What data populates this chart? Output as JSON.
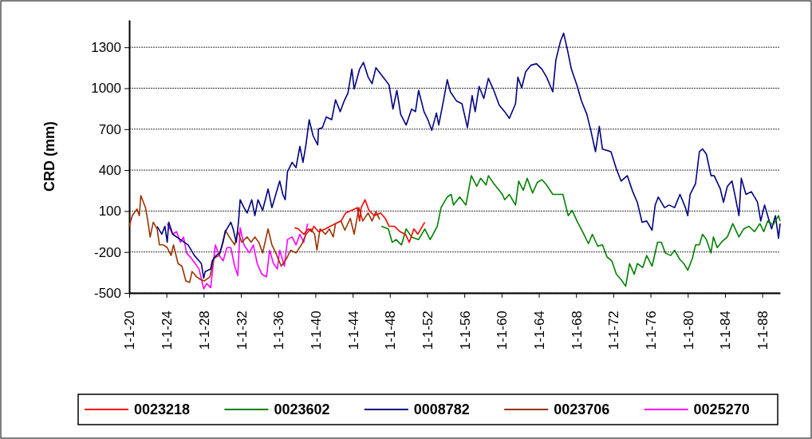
{
  "chart_data": {
    "type": "line",
    "ylabel": "CRD (mm)",
    "xlim": [
      "1920-01-01",
      "1989-12-01"
    ],
    "ylim": [
      -500,
      1500
    ],
    "xticks": [
      {
        "value": "1920-01-01",
        "label": "1-1-20"
      },
      {
        "value": "1924-01-01",
        "label": "1-1-24"
      },
      {
        "value": "1928-01-01",
        "label": "1-1-28"
      },
      {
        "value": "1932-01-01",
        "label": "1-1-32"
      },
      {
        "value": "1936-01-01",
        "label": "1-1-36"
      },
      {
        "value": "1940-01-01",
        "label": "1-1-40"
      },
      {
        "value": "1944-01-01",
        "label": "1-1-44"
      },
      {
        "value": "1948-01-01",
        "label": "1-1-48"
      },
      {
        "value": "1952-01-01",
        "label": "1-1-52"
      },
      {
        "value": "1956-01-01",
        "label": "1-1-56"
      },
      {
        "value": "1960-01-01",
        "label": "1-1-60"
      },
      {
        "value": "1964-01-01",
        "label": "1-1-64"
      },
      {
        "value": "1968-01-01",
        "label": "1-1-68"
      },
      {
        "value": "1972-01-01",
        "label": "1-1-72"
      },
      {
        "value": "1976-01-01",
        "label": "1-1-76"
      },
      {
        "value": "1980-01-01",
        "label": "1-1-80"
      },
      {
        "value": "1984-01-01",
        "label": "1-1-84"
      },
      {
        "value": "1988-01-01",
        "label": "1-1-88"
      }
    ],
    "yticks": [
      -500,
      -200,
      100,
      400,
      700,
      1000,
      1300
    ],
    "grid": "y",
    "legend": "bottom",
    "marker": "none",
    "line_style": "solid",
    "series": [
      {
        "name": "0023218",
        "color": "#ff0000",
        "x": [
          "1937-10",
          "1938-03",
          "1938-10",
          "1939-04",
          "1939-08",
          "1939-11",
          "1940-05",
          "1941-02",
          "1941-08",
          "1942-03",
          "1942-10",
          "1943-04",
          "1943-12",
          "1944-07",
          "1944-10",
          "1944-12",
          "1945-05",
          "1945-10",
          "1946-05",
          "1947-01",
          "1947-07",
          "1947-12",
          "1948-07",
          "1949-02",
          "1949-09",
          "1950-02",
          "1950-08",
          "1951-01",
          "1951-10"
        ],
        "values": [
          -22,
          -31,
          -70,
          -31,
          -51,
          -12,
          -51,
          -31,
          -12,
          8,
          27,
          86,
          105,
          125,
          27,
          125,
          183,
          105,
          66,
          86,
          47,
          -12,
          -12,
          -51,
          -70,
          -129,
          -31,
          -70,
          18
        ]
      },
      {
        "name": "0023602",
        "color": "#008000",
        "x": [
          "1947-02",
          "1947-11",
          "1948-04",
          "1948-09",
          "1949-04",
          "1949-10",
          "1950-05",
          "1951-02",
          "1951-10",
          "1952-05",
          "1953-02",
          "1953-07",
          "1954-03",
          "1954-08",
          "1954-11",
          "1955-07",
          "1956-03",
          "1956-10",
          "1957-05",
          "1957-10",
          "1958-05",
          "1958-08",
          "1959-03",
          "1960-02",
          "1960-05",
          "1960-11",
          "1961-07",
          "1961-11",
          "1962-05",
          "1962-10",
          "1963-05",
          "1963-11",
          "1964-05",
          "1964-11",
          "1965-07",
          "1966-02",
          "1966-08",
          "1967-03",
          "1967-08",
          "1968-03",
          "1968-11",
          "1969-05",
          "1969-10",
          "1970-05",
          "1970-11",
          "1971-05",
          "1971-11",
          "1972-05",
          "1972-11",
          "1973-05",
          "1973-10",
          "1974-04",
          "1974-08",
          "1975-03",
          "1975-08",
          "1976-03",
          "1976-10",
          "1977-03",
          "1977-08",
          "1978-03",
          "1978-08",
          "1979-03",
          "1979-08",
          "1980-01",
          "1980-07",
          "1980-11",
          "1981-04",
          "1981-08",
          "1982-01",
          "1982-07",
          "1982-10",
          "1983-03",
          "1983-10",
          "1984-04",
          "1984-11",
          "1985-07",
          "1986-01",
          "1986-08",
          "1987-03",
          "1987-10",
          "1988-03",
          "1988-08",
          "1989-03",
          "1989-10",
          "1989-12"
        ],
        "values": [
          -12,
          -31,
          -129,
          -109,
          -148,
          -31,
          -90,
          -109,
          -31,
          -109,
          -12,
          125,
          203,
          222,
          144,
          203,
          144,
          359,
          281,
          340,
          291,
          359,
          301,
          222,
          183,
          222,
          144,
          320,
          252,
          340,
          232,
          310,
          330,
          291,
          222,
          222,
          222,
          66,
          105,
          18,
          -70,
          -139,
          -70,
          -158,
          -148,
          -236,
          -265,
          -363,
          -402,
          -451,
          -285,
          -363,
          -285,
          -314,
          -226,
          -304,
          -129,
          -129,
          -207,
          -226,
          -187,
          -256,
          -285,
          -334,
          -246,
          -148,
          -148,
          -70,
          -109,
          -207,
          -90,
          -168,
          -119,
          -90,
          8,
          -90,
          -31,
          -12,
          -51,
          8,
          -51,
          27,
          -2,
          66,
          27
        ]
      },
      {
        "name": "0008782",
        "color": "#000080",
        "x": [
          "1923-01",
          "1923-07",
          "1923-11",
          "1924-02",
          "1924-04",
          "1924-09",
          "1925-07",
          "1926-05",
          "1927-01",
          "1927-07",
          "1927-10",
          "1928-01",
          "1928-03",
          "1928-10",
          "1928-12",
          "1929-05",
          "1929-10",
          "1930-05",
          "1930-12",
          "1931-03",
          "1931-07",
          "1931-10",
          "1931-12",
          "1932-05",
          "1932-09",
          "1933-03",
          "1933-07",
          "1933-11",
          "1934-05",
          "1934-12",
          "1935-05",
          "1935-10",
          "1936-03",
          "1936-07",
          "1936-10",
          "1937-01",
          "1937-07",
          "1937-12",
          "1938-05",
          "1938-09",
          "1939-01",
          "1939-05",
          "1939-10",
          "1940-04",
          "1940-05",
          "1940-10",
          "1941-03",
          "1941-10",
          "1942-03",
          "1942-09",
          "1943-02",
          "1943-07",
          "1943-12",
          "1944-03",
          "1944-10",
          "1945-03",
          "1945-09",
          "1946-02",
          "1946-07",
          "1946-11",
          "1947-07",
          "1947-12",
          "1948-05",
          "1948-10",
          "1949-03",
          "1949-10",
          "1950-05",
          "1950-10",
          "1951-02",
          "1951-09",
          "1952-02",
          "1952-07",
          "1953-01",
          "1953-04",
          "1953-10",
          "1954-03",
          "1954-07",
          "1955-03",
          "1955-10",
          "1956-05",
          "1956-11",
          "1957-03",
          "1957-08",
          "1958-02",
          "1958-08",
          "1959-03",
          "1959-10",
          "1960-05",
          "1960-11",
          "1961-07",
          "1961-10",
          "1962-03",
          "1962-08",
          "1963-03",
          "1963-10",
          "1964-05",
          "1964-11",
          "1965-07",
          "1965-11",
          "1966-05",
          "1966-09",
          "1967-02",
          "1967-07",
          "1968-02",
          "1968-08",
          "1969-03",
          "1969-08",
          "1970-02",
          "1970-07",
          "1970-11",
          "1971-10",
          "1972-05",
          "1972-11",
          "1973-07",
          "1974-02",
          "1974-08",
          "1975-02",
          "1975-08",
          "1976-03",
          "1976-07",
          "1976-11",
          "1977-07",
          "1978-01",
          "1978-08",
          "1979-03",
          "1979-10",
          "1980-01",
          "1980-04",
          "1980-11",
          "1981-04",
          "1981-08",
          "1982-01",
          "1982-07",
          "1982-11",
          "1983-07",
          "1983-11",
          "1984-04",
          "1984-10",
          "1985-03",
          "1985-07",
          "1985-10",
          "1986-04",
          "1986-11",
          "1987-07",
          "1987-11",
          "1988-04",
          "1988-08",
          "1989-01",
          "1989-06",
          "1989-10",
          "1989-12"
        ],
        "values": [
          -12,
          -70,
          -12,
          -129,
          18,
          -70,
          -109,
          -148,
          -226,
          -265,
          -285,
          -392,
          -343,
          -324,
          -265,
          -226,
          -207,
          -51,
          18,
          -31,
          -129,
          27,
          183,
          125,
          86,
          183,
          66,
          183,
          105,
          262,
          125,
          222,
          320,
          222,
          183,
          388,
          457,
          418,
          574,
          457,
          593,
          769,
          652,
          584,
          701,
          711,
          789,
          769,
          915,
          828,
          906,
          964,
          1140,
          994,
          1140,
          1189,
          1081,
          1033,
          1150,
          1120,
          1062,
          1023,
          847,
          984,
          808,
          730,
          847,
          828,
          984,
          828,
          769,
          691,
          818,
          730,
          906,
          1062,
          974,
          906,
          886,
          711,
          945,
          828,
          1013,
          925,
          1072,
          984,
          876,
          828,
          779,
          886,
          1081,
          1003,
          1120,
          1169,
          1179,
          1140,
          1081,
          974,
          1208,
          1345,
          1403,
          1277,
          1140,
          1023,
          906,
          808,
          691,
          535,
          720,
          554,
          535,
          408,
          320,
          359,
          242,
          164,
          18,
          27,
          -41,
          144,
          203,
          125,
          144,
          125,
          222,
          125,
          66,
          222,
          301,
          535,
          555,
          516,
          359,
          359,
          262,
          164,
          281,
          320,
          183,
          66,
          340,
          222,
          242,
          164,
          27,
          144,
          66,
          -31,
          66,
          -100,
          8
        ]
      },
      {
        "name": "0023706",
        "color": "#993300",
        "x": [
          "1920-01",
          "1920-05",
          "1920-11",
          "1921-02",
          "1921-04",
          "1921-10",
          "1922-01",
          "1922-04",
          "1922-08",
          "1923-01",
          "1923-04",
          "1923-09",
          "1924-02",
          "1924-07",
          "1924-10",
          "1925-04",
          "1925-09",
          "1926-02",
          "1926-07",
          "1926-10",
          "1927-04",
          "1927-09",
          "1928-02",
          "1928-09",
          "1929-02",
          "1929-09",
          "1930-02",
          "1930-05",
          "1930-10",
          "1931-05",
          "1931-09",
          "1932-02",
          "1932-09",
          "1933-02",
          "1933-07",
          "1933-12",
          "1934-05",
          "1934-12",
          "1935-05",
          "1935-10",
          "1936-05",
          "1936-12",
          "1937-05",
          "1937-12",
          "1938-07",
          "1939-01",
          "1939-07",
          "1939-12",
          "1940-03",
          "1940-07",
          "1941-02",
          "1941-07",
          "1941-12",
          "1942-03",
          "1942-10",
          "1943-03",
          "1943-10",
          "1944-03",
          "1944-09",
          "1945-02",
          "1945-09",
          "1946-02",
          "1946-07",
          "1946-12"
        ],
        "values": [
          -12,
          66,
          115,
          66,
          213,
          125,
          27,
          -90,
          18,
          -31,
          -148,
          -148,
          -168,
          -226,
          -148,
          -285,
          -304,
          -412,
          -422,
          -343,
          -382,
          -402,
          -412,
          -382,
          -246,
          -226,
          -129,
          -41,
          -90,
          -148,
          -51,
          -129,
          -90,
          -129,
          -90,
          -129,
          -207,
          -31,
          -148,
          -207,
          -304,
          -246,
          -187,
          -207,
          -148,
          -70,
          -31,
          -70,
          -187,
          -31,
          -70,
          -31,
          -90,
          8,
          27,
          -41,
          47,
          -70,
          125,
          27,
          86,
          27,
          96,
          37
        ]
      },
      {
        "name": "0025270",
        "color": "#ff00ff",
        "x": [
          "1924-02",
          "1924-09",
          "1925-02",
          "1925-07",
          "1925-11",
          "1926-03",
          "1926-09",
          "1927-02",
          "1927-07",
          "1928-01",
          "1928-05",
          "1928-10",
          "1929-04",
          "1929-09",
          "1930-02",
          "1930-07",
          "1930-12",
          "1931-05",
          "1931-09",
          "1931-12",
          "1932-05",
          "1932-12",
          "1933-05",
          "1933-10",
          "1934-04",
          "1934-10",
          "1935-02",
          "1935-07",
          "1935-12",
          "1936-03",
          "1936-09",
          "1937-01",
          "1937-07",
          "1937-12",
          "1938-05",
          "1938-10",
          "1939-03"
        ],
        "values": [
          8,
          -70,
          -51,
          -129,
          -90,
          -207,
          -246,
          -285,
          -324,
          -470,
          -431,
          -461,
          -148,
          -226,
          -265,
          -168,
          -168,
          -304,
          -373,
          -22,
          -148,
          -207,
          -148,
          -285,
          -363,
          -382,
          -187,
          -285,
          -324,
          -187,
          -304,
          -109,
          -90,
          -148,
          -70,
          -129,
          8
        ]
      }
    ]
  }
}
